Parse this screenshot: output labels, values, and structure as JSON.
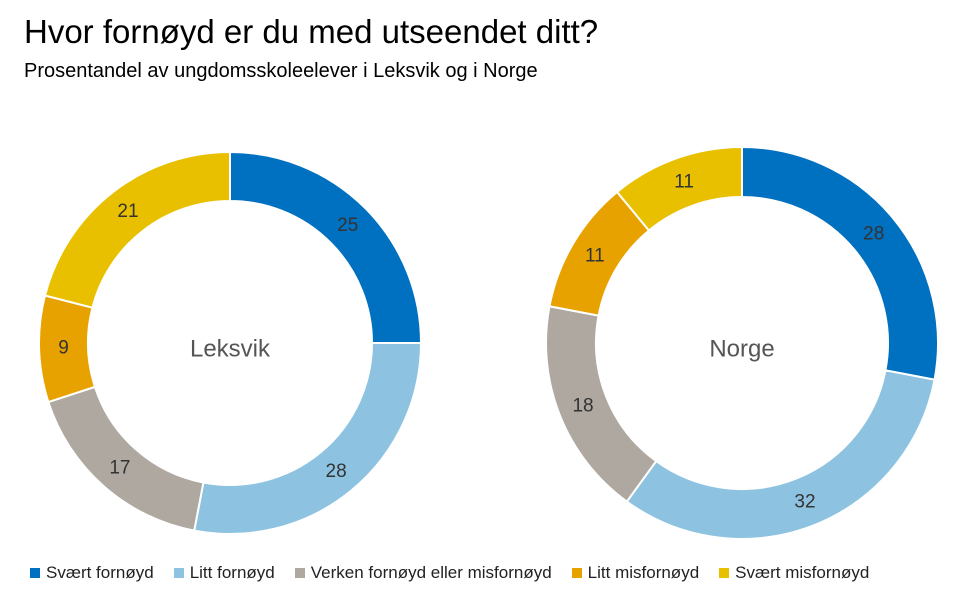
{
  "header": {
    "title": "Hvor fornøyd er du med utseendet ditt?",
    "subtitle": "Prosentandel av ungdomsskoleelever i Leksvik og i Norge"
  },
  "chart_data": [
    {
      "type": "pie",
      "variant": "donut",
      "center_label": "Leksvik",
      "categories": [
        "Svært fornøyd",
        "Litt fornøyd",
        "Verken fornøyd eller misfornøyd",
        "Litt misfornøyd",
        "Svært misfornøyd"
      ],
      "values": [
        25,
        28,
        17,
        9,
        21
      ],
      "data_labels": [
        "25",
        "28",
        "17",
        "9",
        "21"
      ]
    },
    {
      "type": "pie",
      "variant": "donut",
      "center_label": "Norge",
      "categories": [
        "Svært fornøyd",
        "Litt fornøyd",
        "Verken fornøyd eller misfornøyd",
        "Litt misfornøyd",
        "Svært misfornøyd"
      ],
      "values": [
        28,
        32,
        18,
        11,
        11
      ],
      "data_labels": [
        "28",
        "32",
        "18",
        "11",
        "11"
      ]
    }
  ],
  "legend": {
    "position": "bottom",
    "items": [
      {
        "label": "Svært fornøyd",
        "color": "#0070C0"
      },
      {
        "label": "Litt fornøyd",
        "color": "#8DC3E0"
      },
      {
        "label": "Verken fornøyd eller misfornøyd",
        "color": "#AEA8A0"
      },
      {
        "label": "Litt misfornøyd",
        "color": "#E8A200"
      },
      {
        "label": "Svært misfornøyd",
        "color": "#E8C000"
      }
    ]
  }
}
